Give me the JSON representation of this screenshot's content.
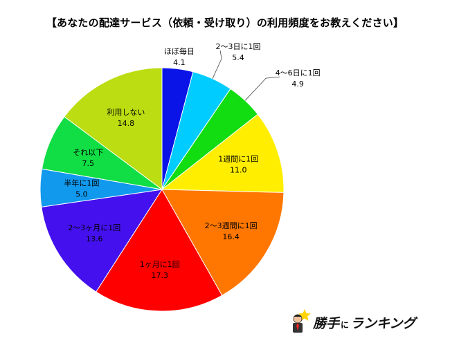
{
  "chart_data": {
    "type": "pie",
    "title": "【あなたの配達サービス（依頼・受け取り）の利用頻度をお教えください】",
    "slices": [
      {
        "label": "ほぼ毎日",
        "value": 4.1,
        "value_label": "4.1",
        "color": "#0a14e6"
      },
      {
        "label": "2～3日に1回",
        "value": 5.4,
        "value_label": "5.4",
        "color": "#00ccff"
      },
      {
        "label": "4～6日に1回",
        "value": 4.9,
        "value_label": "4.9",
        "color": "#11dd11"
      },
      {
        "label": "1週間に1回",
        "value": 11.0,
        "value_label": "11.0",
        "color": "#ffee00"
      },
      {
        "label": "2～3週間に1回",
        "value": 16.4,
        "value_label": "16.4",
        "color": "#ff7700"
      },
      {
        "label": "1ヶ月に1回",
        "value": 17.3,
        "value_label": "17.3",
        "color": "#ff0000"
      },
      {
        "label": "2～3ヶ月に1回",
        "value": 13.6,
        "value_label": "13.6",
        "color": "#4411ee"
      },
      {
        "label": "半年に1回",
        "value": 5.0,
        "value_label": "5.0",
        "color": "#1199ee"
      },
      {
        "label": "それ以下",
        "value": 7.5,
        "value_label": "7.5",
        "color": "#11dd44"
      },
      {
        "label": "利用しない",
        "value": 14.8,
        "value_label": "14.8",
        "color": "#bbdd11"
      }
    ]
  },
  "logo": {
    "text_kachi": "勝手",
    "text_ni": "に",
    "text_ranking": "ランキング"
  }
}
